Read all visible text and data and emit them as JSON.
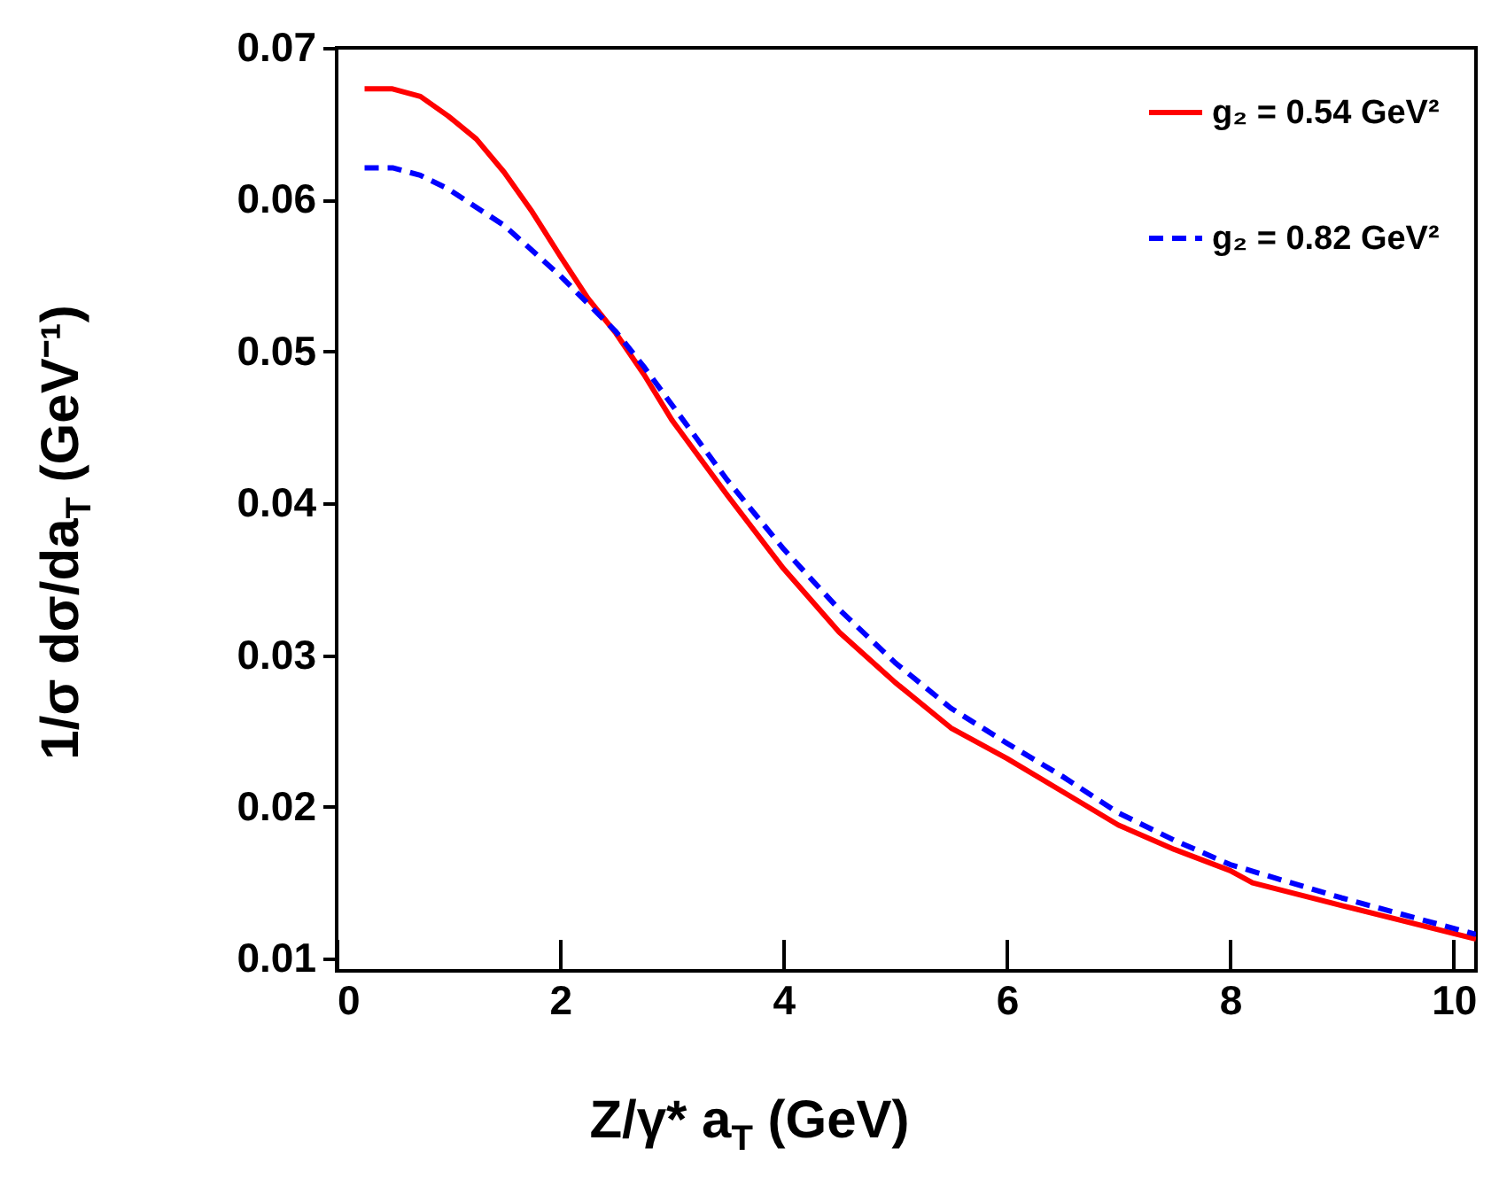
{
  "chart_data": {
    "type": "line",
    "xlabel": "Z/γ* a$_{T}$ (GeV)",
    "ylabel": "1/σ dσ/da$_{T}$ (GeV⁻¹)",
    "xlim": [
      0,
      10.2
    ],
    "ylim": [
      0.0092,
      0.07
    ],
    "xticks": [
      0,
      2,
      4,
      6,
      8,
      10
    ],
    "yticks": [
      0.01,
      0.02,
      0.03,
      0.04,
      0.05,
      0.06,
      0.07
    ],
    "grid": false,
    "legend": "top right",
    "series": [
      {
        "name": "g₂ = 0.54 GeV²",
        "color": "#ff0000",
        "line_style": "solid",
        "x": [
          0.25,
          0.5,
          0.75,
          1.0,
          1.25,
          1.5,
          1.75,
          2.0,
          2.25,
          2.5,
          2.75,
          3.0,
          3.5,
          4.0,
          4.5,
          5.0,
          5.5,
          6.0,
          6.5,
          7.0,
          7.5,
          8.0,
          8.2,
          9.0,
          10.2
        ],
        "values": [
          0.0673,
          0.0673,
          0.0668,
          0.0655,
          0.064,
          0.0618,
          0.0592,
          0.0563,
          0.0535,
          0.0512,
          0.0485,
          0.0455,
          0.0405,
          0.0357,
          0.0315,
          0.0282,
          0.0252,
          0.0232,
          0.021,
          0.0188,
          0.0172,
          0.0158,
          0.015,
          0.0135,
          0.0113
        ]
      },
      {
        "name": "g₂ = 0.82 GeV²",
        "color": "#0000ff",
        "line_style": "dashed",
        "x": [
          0.25,
          0.5,
          0.75,
          1.0,
          1.5,
          2.0,
          2.5,
          2.75,
          3.0,
          3.5,
          4.0,
          4.5,
          5.0,
          5.5,
          6.0,
          6.5,
          7.0,
          7.5,
          8.0,
          9.0,
          10.2
        ],
        "values": [
          0.0621,
          0.0621,
          0.0616,
          0.0607,
          0.0583,
          0.055,
          0.0513,
          0.049,
          0.0465,
          0.0415,
          0.037,
          0.033,
          0.0295,
          0.0265,
          0.0242,
          0.022,
          0.0196,
          0.0178,
          0.0162,
          0.014,
          0.0116
        ]
      }
    ]
  }
}
